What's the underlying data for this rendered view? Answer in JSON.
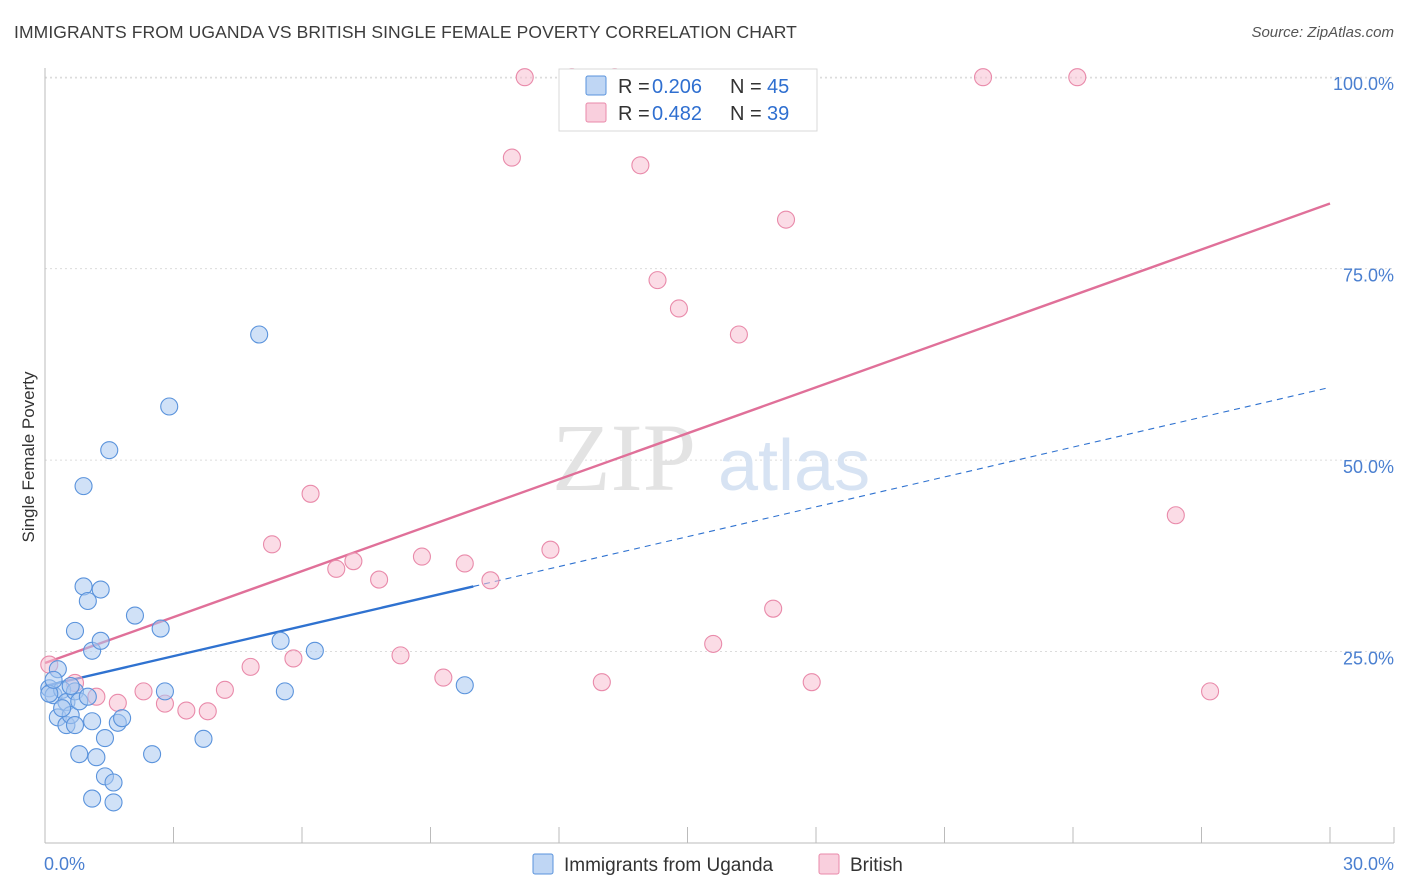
{
  "title": "IMMIGRANTS FROM UGANDA VS BRITISH SINGLE FEMALE POVERTY CORRELATION CHART",
  "source": "Source: ZipAtlas.com",
  "watermark": {
    "zip": "ZIP",
    "atlas": "atlas"
  },
  "colors": {
    "uganda_fill": "#a9c8f0",
    "uganda_stroke": "#5a93dc",
    "uganda_line": "#2f72d0",
    "british_fill": "#f7bfd1",
    "british_stroke": "#e98aaa",
    "british_line": "#e07099",
    "tick_text": "#4a7fd0",
    "grid": "#dcdcdc"
  },
  "legend_top": [
    {
      "r_label": "R =",
      "r_value": "0.206",
      "n_label": "N =",
      "n_value": "45"
    },
    {
      "r_label": "R =",
      "r_value": "0.482",
      "n_label": "N =",
      "n_value": "39"
    }
  ],
  "chart_data": {
    "type": "scatter",
    "title": "IMMIGRANTS FROM UGANDA VS BRITISH SINGLE FEMALE POVERTY CORRELATION CHART",
    "xlabel": "",
    "ylabel": "Single Female Poverty",
    "xlim": [
      0,
      30
    ],
    "ylim": [
      0,
      102
    ],
    "x_tick_labels": [
      "0.0%",
      "30.0%"
    ],
    "y_ticks": [
      25,
      50,
      75,
      100
    ],
    "y_tick_labels": [
      "25.0%",
      "50.0%",
      "75.0%",
      "100.0%"
    ],
    "grid": true,
    "legend_position": "bottom",
    "series": [
      {
        "name": "Immigrants from Uganda",
        "trend": {
          "x0": 0,
          "y0": 20.5,
          "x1": 10,
          "y1": 33.5,
          "dashed_to_x": 30,
          "dashed_to_y": 59.5
        },
        "points": [
          [
            0.1,
            20.2
          ],
          [
            0.2,
            19.3
          ],
          [
            0.3,
            16.4
          ],
          [
            0.3,
            22.7
          ],
          [
            0.4,
            20.0
          ],
          [
            0.5,
            18.4
          ],
          [
            0.5,
            15.4
          ],
          [
            0.6,
            16.7
          ],
          [
            0.7,
            19.8
          ],
          [
            0.7,
            15.4
          ],
          [
            0.7,
            27.7
          ],
          [
            0.8,
            18.5
          ],
          [
            0.8,
            11.6
          ],
          [
            0.9,
            46.6
          ],
          [
            0.9,
            33.5
          ],
          [
            1.0,
            31.6
          ],
          [
            1.0,
            19.1
          ],
          [
            1.1,
            25.1
          ],
          [
            1.1,
            5.8
          ],
          [
            1.1,
            15.9
          ],
          [
            1.2,
            11.2
          ],
          [
            1.3,
            26.4
          ],
          [
            1.3,
            33.1
          ],
          [
            1.4,
            8.7
          ],
          [
            1.4,
            13.7
          ],
          [
            1.5,
            51.3
          ],
          [
            1.6,
            7.9
          ],
          [
            1.6,
            5.3
          ],
          [
            1.7,
            15.7
          ],
          [
            1.8,
            16.3
          ],
          [
            2.1,
            29.7
          ],
          [
            2.5,
            11.6
          ],
          [
            2.7,
            28.0
          ],
          [
            2.8,
            19.8
          ],
          [
            2.9,
            57.0
          ],
          [
            3.7,
            13.6
          ],
          [
            5.0,
            66.4
          ],
          [
            5.5,
            26.4
          ],
          [
            5.6,
            19.8
          ],
          [
            6.3,
            25.1
          ],
          [
            9.8,
            20.6
          ],
          [
            0.1,
            19.5
          ],
          [
            0.2,
            21.3
          ],
          [
            0.4,
            17.6
          ],
          [
            0.6,
            20.5
          ]
        ]
      },
      {
        "name": "British",
        "trend": {
          "x0": 0,
          "y0": 23.5,
          "x1": 30,
          "y1": 83.5
        },
        "points": [
          [
            0.1,
            23.3
          ],
          [
            0.7,
            20.9
          ],
          [
            1.2,
            19.1
          ],
          [
            1.7,
            18.3
          ],
          [
            2.3,
            19.8
          ],
          [
            2.8,
            18.2
          ],
          [
            3.3,
            17.3
          ],
          [
            3.8,
            17.2
          ],
          [
            4.2,
            20.0
          ],
          [
            4.8,
            23.0
          ],
          [
            5.3,
            39.0
          ],
          [
            5.8,
            24.1
          ],
          [
            6.2,
            45.6
          ],
          [
            6.8,
            35.8
          ],
          [
            7.2,
            36.8
          ],
          [
            7.8,
            34.4
          ],
          [
            8.3,
            24.5
          ],
          [
            8.8,
            37.4
          ],
          [
            9.3,
            21.6
          ],
          [
            9.8,
            36.5
          ],
          [
            10.4,
            34.3
          ],
          [
            10.9,
            89.5
          ],
          [
            11.2,
            100.0
          ],
          [
            11.8,
            38.3
          ],
          [
            12.3,
            100.0
          ],
          [
            13.0,
            21.0
          ],
          [
            13.3,
            100.0
          ],
          [
            13.9,
            88.5
          ],
          [
            14.3,
            73.5
          ],
          [
            14.8,
            69.8
          ],
          [
            15.6,
            26.0
          ],
          [
            16.2,
            66.4
          ],
          [
            17.0,
            30.6
          ],
          [
            17.3,
            81.4
          ],
          [
            17.9,
            21.0
          ],
          [
            21.9,
            100.0
          ],
          [
            24.1,
            100.0
          ],
          [
            26.4,
            42.8
          ],
          [
            27.2,
            19.8
          ]
        ]
      }
    ]
  }
}
